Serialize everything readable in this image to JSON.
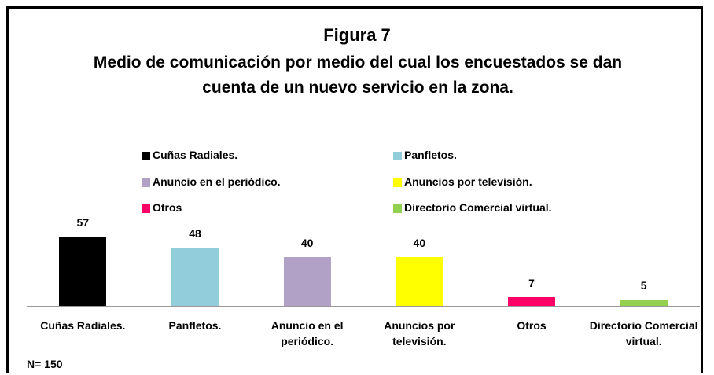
{
  "chart_data": {
    "type": "bar",
    "title": "Figura 7",
    "subtitle": "Medio de comunicación por medio del cual los encuestados se dan cuenta de un nuevo servicio en la zona.",
    "categories": [
      "Cuñas Radiales.",
      "Panfletos.",
      "Anuncio en el periódico.",
      "Anuncios por televisión.",
      "Otros",
      "Directorio Comercial virtual."
    ],
    "values": [
      57,
      48,
      40,
      40,
      7,
      5
    ],
    "colors": [
      "#000000",
      "#92cddc",
      "#b2a1c7",
      "#ffff00",
      "#ff0066",
      "#92d050"
    ],
    "legend": "top",
    "note": "N= 150"
  }
}
